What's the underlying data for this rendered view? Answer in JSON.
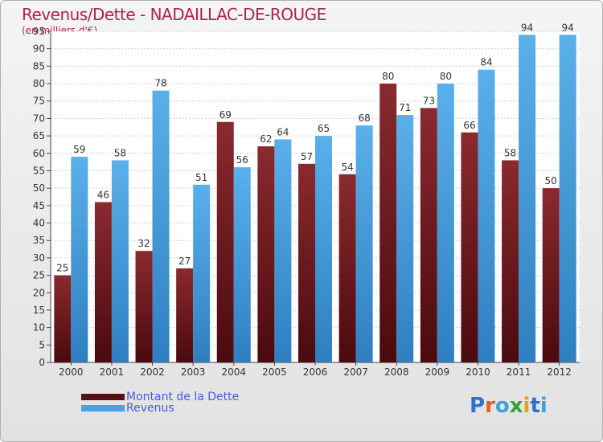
{
  "chart_data": {
    "type": "bar",
    "title": "Revenus/Dette - NADAILLAC-DE-ROUGE",
    "subtitle": "(en milliers d'€)",
    "categories": [
      "2000",
      "2001",
      "2002",
      "2003",
      "2004",
      "2005",
      "2006",
      "2007",
      "2008",
      "2009",
      "2010",
      "2011",
      "2012"
    ],
    "series": [
      {
        "name": "Montant de la Dette",
        "color": "#7a1f25",
        "values": [
          25,
          46,
          32,
          27,
          69,
          62,
          57,
          54,
          80,
          73,
          66,
          58,
          50
        ]
      },
      {
        "name": "Revenus",
        "color": "#4aa3e0",
        "values": [
          59,
          58,
          78,
          51,
          56,
          64,
          65,
          68,
          71,
          80,
          84,
          94,
          94
        ]
      }
    ],
    "ylim": [
      0,
      95
    ],
    "ytick_step": 5,
    "grid": true,
    "data_labels": true,
    "legend_position": "bottom-left"
  },
  "brand": {
    "text": "Proxiti"
  }
}
